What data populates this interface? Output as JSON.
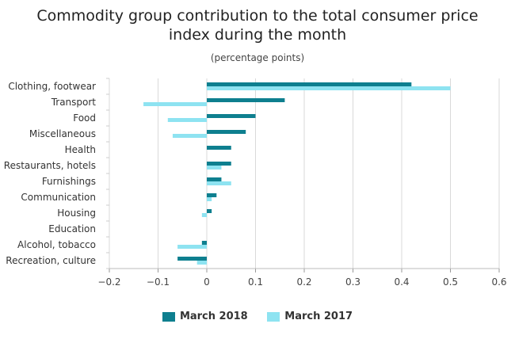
{
  "chart_data": {
    "type": "bar",
    "orientation": "horizontal",
    "title": "Commodity group contribution to the total consumer price index during the month",
    "subtitle": "(percentage points)",
    "categories": [
      "Clothing, footwear",
      "Transport",
      "Food",
      "Miscellaneous",
      "Health",
      "Restaurants, hotels",
      "Furnishings",
      "Communication",
      "Housing",
      "Education",
      "Alcohol, tobacco",
      "Recreation, culture"
    ],
    "series": [
      {
        "name": "March 2018",
        "color": "#0e7f8f",
        "values": [
          0.42,
          0.16,
          0.1,
          0.08,
          0.05,
          0.05,
          0.03,
          0.02,
          0.01,
          0.0,
          -0.01,
          -0.06
        ]
      },
      {
        "name": "March 2017",
        "color": "#8ee3f1",
        "values": [
          0.5,
          -0.13,
          -0.08,
          -0.07,
          0.0,
          0.03,
          0.05,
          0.01,
          -0.01,
          0.0,
          -0.06,
          -0.02
        ]
      }
    ],
    "xlim": [
      -0.2,
      0.6
    ],
    "xticks": [
      "−0.2",
      "−0.1",
      "0",
      "0.1",
      "0.2",
      "0.3",
      "0.4",
      "0.5",
      "0.6"
    ],
    "grid": true,
    "legend_position": "bottom"
  }
}
